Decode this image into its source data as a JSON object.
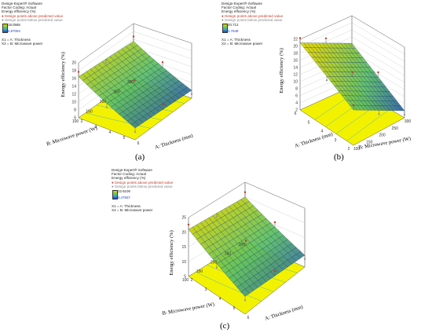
{
  "chart_data": [
    {
      "id": "a",
      "type": "surface3d",
      "caption": "(a)",
      "legend": {
        "software": "Design-Expert® Software",
        "coding": "Factor Coding: Actual",
        "response": "Energy efficiency (%)",
        "above": "Design points above predicted value",
        "below": "Design points below predicted value",
        "max": "18.0565",
        "min": "6.87064",
        "x1": "X1 = A: Thickness",
        "x2": "X2 = B: Microwave power"
      },
      "zlabel": "Energy efficiency (%)",
      "xlabel": "A: Thickness (mm)",
      "ylabel": "B: Microwave power (W)",
      "zticks": [
        "6",
        "8",
        "10",
        "12",
        "14",
        "16",
        "18",
        "20"
      ],
      "xticks": [
        "2",
        "3",
        "4",
        "5",
        "6"
      ],
      "yticks": [
        "100",
        "150",
        "200",
        "250",
        "300"
      ],
      "zlim": [
        6,
        20
      ],
      "thickness": [
        2,
        6
      ],
      "power": [
        100,
        300
      ],
      "corners": [
        {
          "thickness": 2,
          "power": 100,
          "efficiency": 16.5
        },
        {
          "thickness": 6,
          "power": 100,
          "efficiency": 9.0
        },
        {
          "thickness": 2,
          "power": 300,
          "efficiency": 15.5
        },
        {
          "thickness": 6,
          "power": 300,
          "efficiency": 8.0
        }
      ]
    },
    {
      "id": "b",
      "type": "surface3d",
      "caption": "(b)",
      "legend": {
        "software": "Design-Expert® Software",
        "coding": "Factor Coding: Actual",
        "response": "Energy efficiency (%)",
        "above": "Design points above predicted value",
        "below": "Design points below predicted value",
        "max": "20.712",
        "min": "3.7648",
        "x1": "X1 = A: Thickness",
        "x2": "X2 = B: Microwave power"
      },
      "zlabel": "Energy efficiency (%)",
      "xlabel": "A: Thickness (mm)",
      "ylabel": "B: Microwave power (W)",
      "zticks": [
        "2",
        "4",
        "6",
        "8",
        "10",
        "12",
        "14",
        "16",
        "18",
        "20",
        "22"
      ],
      "xticks": [
        "2",
        "3",
        "4",
        "5",
        "6"
      ],
      "yticks": [
        "100",
        "150",
        "200",
        "250",
        "300"
      ],
      "zlim": [
        2,
        22
      ],
      "thickness": [
        2,
        6
      ],
      "power": [
        100,
        300
      ],
      "corners": [
        {
          "thickness": 2,
          "power": 300,
          "efficiency": 21.0
        },
        {
          "thickness": 6,
          "power": 300,
          "efficiency": 12.0
        },
        {
          "thickness": 2,
          "power": 100,
          "efficiency": 12.0
        },
        {
          "thickness": 6,
          "power": 100,
          "efficiency": 4.0
        }
      ]
    },
    {
      "id": "c",
      "type": "surface3d",
      "caption": "(c)",
      "legend": {
        "software": "Design-Expert® Software",
        "coding": "Factor Coding: Actual",
        "response": "Energy efficiency (%)",
        "above": "Design points above predicted value",
        "below": "Design points below predicted value",
        "max": "22.6109",
        "min": "6.47657",
        "x1": "X1 = A: Thickness",
        "x2": "X2 = B: Microwave power"
      },
      "zlabel": "Energy efficiency (%)",
      "xlabel": "A: Thickness (mm)",
      "ylabel": "B: Microwave power (W)",
      "zticks": [
        "5",
        "10",
        "15",
        "20",
        "25"
      ],
      "xticks": [
        "2",
        "3",
        "4",
        "5",
        "6"
      ],
      "yticks": [
        "100",
        "150",
        "200",
        "250",
        "300"
      ],
      "zlim": [
        5,
        25
      ],
      "thickness": [
        2,
        6
      ],
      "power": [
        100,
        300
      ],
      "corners": [
        {
          "thickness": 2,
          "power": 100,
          "efficiency": 21.0
        },
        {
          "thickness": 6,
          "power": 100,
          "efficiency": 11.0
        },
        {
          "thickness": 2,
          "power": 300,
          "efficiency": 20.0
        },
        {
          "thickness": 6,
          "power": 300,
          "efficiency": 9.0
        }
      ]
    }
  ],
  "colors": {
    "surface_high": "#d9d400",
    "surface_mid": "#5cc064",
    "surface_low": "#2346b5",
    "floor": "#f2f200",
    "contour": "#3aa3d8",
    "point_above": "#c0392b",
    "point_below": "#9a9a9a",
    "frame": "#333333"
  }
}
